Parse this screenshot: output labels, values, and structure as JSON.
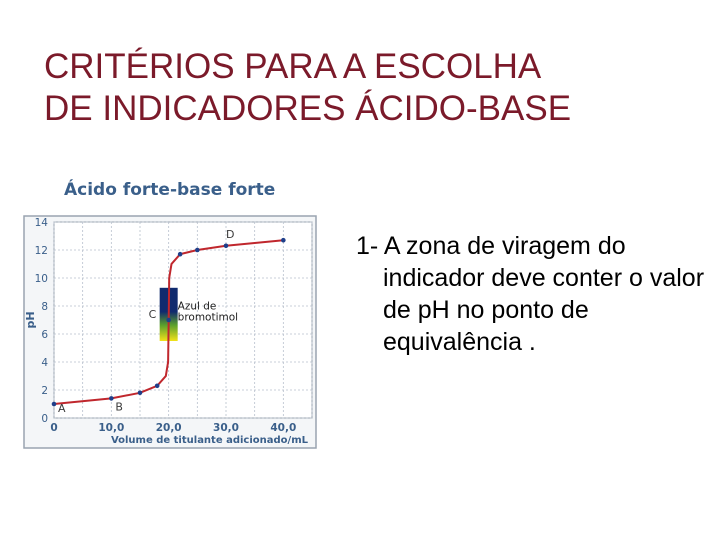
{
  "slide": {
    "title_line1": "CRITÉRIOS PARA A ESCOLHA",
    "title_line2": "DE INDICADORES ÁCIDO-BASE",
    "bullet_number": "1-",
    "bullet_text": "A zona de viragem do indicador deve conter o valor de pH no ponto de equivalência ."
  },
  "colors": {
    "title": "#7b1a2a",
    "chart_heading": "#3a5f8a",
    "chart_axis_text": "#3a5f8a",
    "curve": "#c0272d",
    "points": "#1f3f8a",
    "indicator_top": "#102a6e",
    "indicator_mid": "#5aa02c",
    "indicator_bottom": "#f2e21a"
  },
  "chart_data": {
    "type": "line",
    "title": "Ácido forte-base forte",
    "xlabel": "Volume de titulante adicionado/mL",
    "ylabel": "pH",
    "xlim": [
      0,
      45
    ],
    "ylim": [
      0,
      14
    ],
    "x_ticks": [
      "0",
      "10,0",
      "20,0",
      "30,0",
      "40,0"
    ],
    "y_ticks": [
      "0",
      "2",
      "4",
      "6",
      "8",
      "10",
      "12",
      "14"
    ],
    "grid": true,
    "series": [
      {
        "x": [
          0,
          10,
          15,
          18,
          19.5,
          19.9,
          20,
          20.1,
          20.5,
          22,
          25,
          30,
          35,
          40
        ],
        "y": [
          1.0,
          1.4,
          1.8,
          2.3,
          3.0,
          4.0,
          7.0,
          10.0,
          11.0,
          11.7,
          12.0,
          12.3,
          12.5,
          12.7
        ]
      }
    ],
    "points_labeled": [
      {
        "label": "A",
        "x": 0,
        "y": 1.0
      },
      {
        "label": "B",
        "x": 10,
        "y": 1.4
      },
      {
        "label": "C",
        "x": 20,
        "y": 7.0
      },
      {
        "label": "D",
        "x": 30,
        "y": 12.3
      }
    ],
    "indicator_zone": {
      "name": "Azul de bromotimol",
      "x": 20,
      "ymin": 6.0,
      "ymax": 7.6
    },
    "annotations": [
      "Azul de",
      "bromotimol"
    ]
  }
}
